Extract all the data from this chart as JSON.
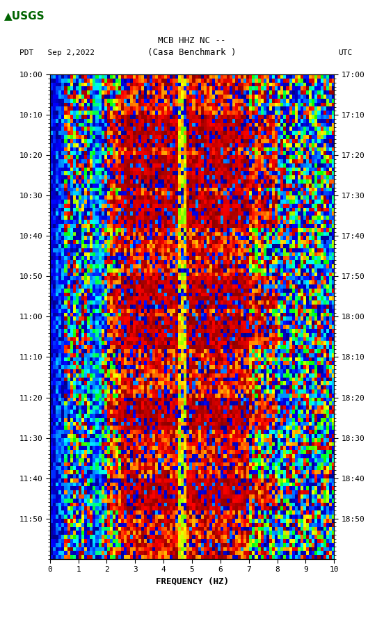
{
  "title_line1": "MCB HHZ NC --",
  "title_line2": "(Casa Benchmark )",
  "date_label": "PDT   Sep 2,2022",
  "utc_label": "UTC",
  "xlabel": "FREQUENCY (HZ)",
  "freq_min": 0,
  "freq_max": 10,
  "freq_ticks": [
    0,
    1,
    2,
    3,
    4,
    5,
    6,
    7,
    8,
    9,
    10
  ],
  "time_left_labels": [
    "10:00",
    "10:10",
    "10:20",
    "10:30",
    "10:40",
    "10:50",
    "11:00",
    "11:10",
    "11:20",
    "11:30",
    "11:40",
    "11:50"
  ],
  "time_right_labels": [
    "17:00",
    "17:10",
    "17:20",
    "17:30",
    "17:40",
    "17:50",
    "18:00",
    "18:10",
    "18:20",
    "18:30",
    "18:40",
    "18:50"
  ],
  "n_time_bins": 120,
  "n_freq_bins": 100,
  "bg_color": "white",
  "fig_width": 5.52,
  "fig_height": 8.93,
  "colormap_colors": [
    "#00008B",
    "#0000FF",
    "#0080FF",
    "#00FFFF",
    "#00FF80",
    "#00FF00",
    "#80FF00",
    "#FFFF00",
    "#FF8000",
    "#FF0000",
    "#800000"
  ],
  "logo_color": "#006400"
}
